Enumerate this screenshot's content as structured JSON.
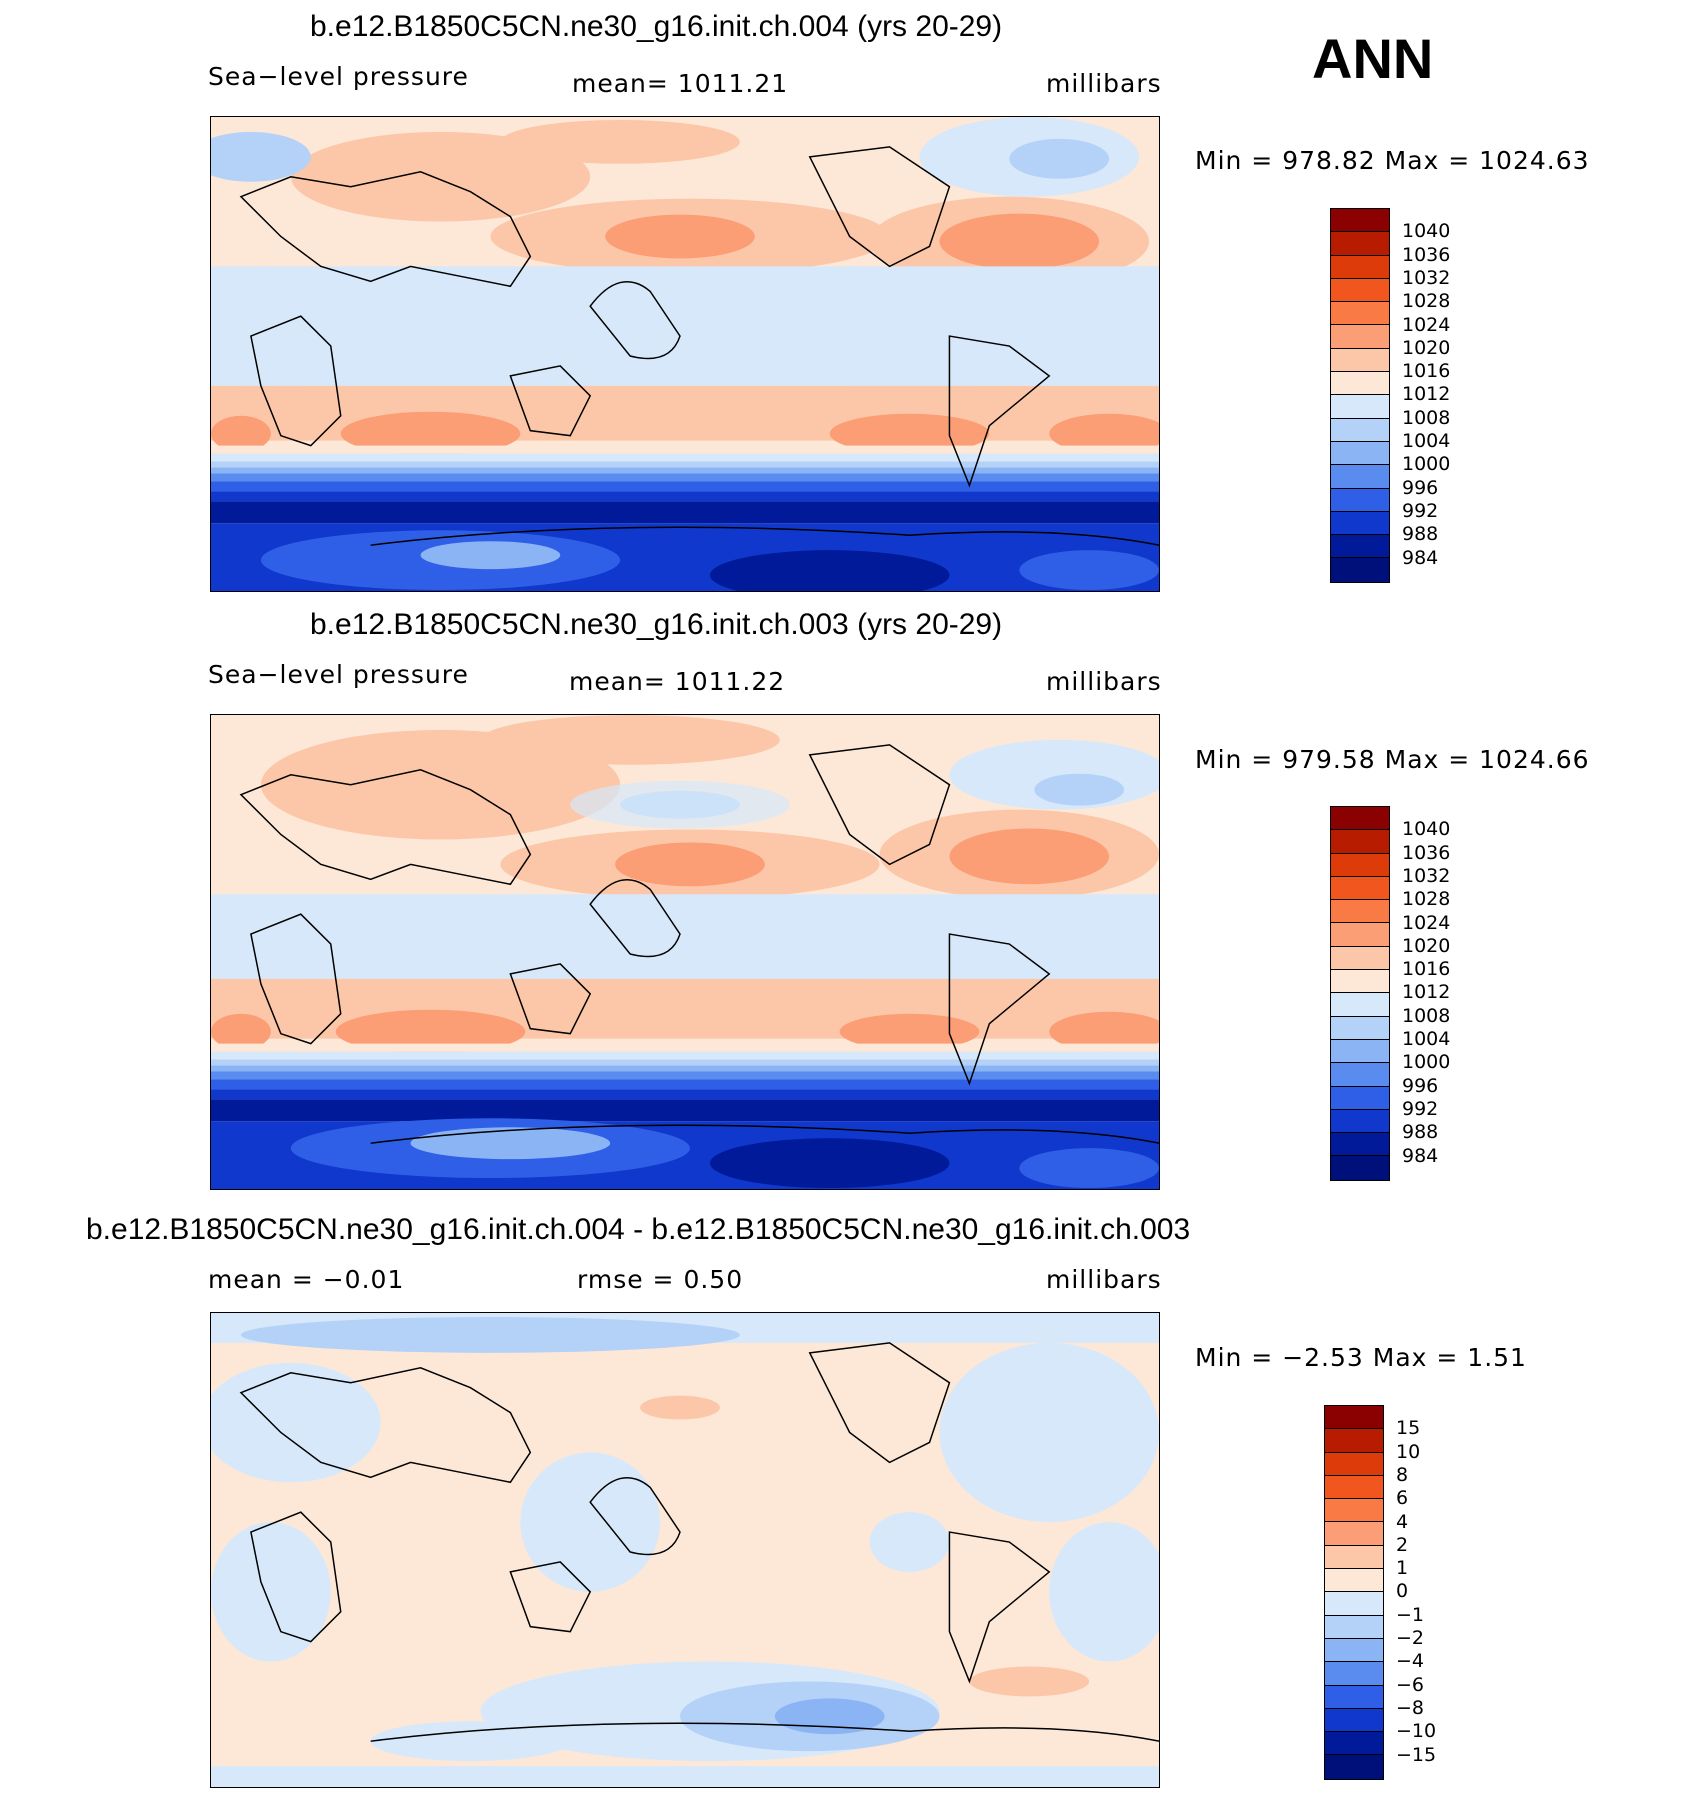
{
  "season": "ANN",
  "panels": [
    {
      "title": "b.e12.B1850C5CN.ne30_g16.init.ch.004 (yrs 20-29)",
      "left_label": "Sea−level pressure",
      "center_label": "mean=  1011.21",
      "right_label": "millibars",
      "minmax": "Min  =  978.82  Max  =  1024.63",
      "levels": [
        "1040",
        "1036",
        "1032",
        "1028",
        "1024",
        "1020",
        "1016",
        "1012",
        "1008",
        "1004",
        "1000",
        "996",
        "992",
        "988",
        "984"
      ],
      "colors": [
        "#8b0000",
        "#b81c00",
        "#dd3c0a",
        "#f0561e",
        "#fa7a46",
        "#fb9e76",
        "#fcc7a8",
        "#fde8d8",
        "#d6e8fa",
        "#b4d2f8",
        "#8bb4f4",
        "#5a8cf0",
        "#2f5fe6",
        "#1038cc",
        "#001a99",
        "#00107a"
      ]
    },
    {
      "title": "b.e12.B1850C5CN.ne30_g16.init.ch.003 (yrs 20-29)",
      "left_label": "Sea−level pressure",
      "center_label": "mean=  1011.22",
      "right_label": "millibars",
      "minmax": "Min  =  979.58  Max  =  1024.66",
      "levels": [
        "1040",
        "1036",
        "1032",
        "1028",
        "1024",
        "1020",
        "1016",
        "1012",
        "1008",
        "1004",
        "1000",
        "996",
        "992",
        "988",
        "984"
      ],
      "colors": [
        "#8b0000",
        "#b81c00",
        "#dd3c0a",
        "#f0561e",
        "#fa7a46",
        "#fb9e76",
        "#fcc7a8",
        "#fde8d8",
        "#d6e8fa",
        "#b4d2f8",
        "#8bb4f4",
        "#5a8cf0",
        "#2f5fe6",
        "#1038cc",
        "#001a99",
        "#00107a"
      ]
    },
    {
      "title": "b.e12.B1850C5CN.ne30_g16.init.ch.004 - b.e12.B1850C5CN.ne30_g16.init.ch.003",
      "left_label": "mean  =    −0.01",
      "center_label": "rmse  =     0.50",
      "right_label": "millibars",
      "minmax": "Min  =    −2.53  Max  =     1.51",
      "levels": [
        "15",
        "10",
        "8",
        "6",
        "4",
        "2",
        "1",
        "0",
        "−1",
        "−2",
        "−4",
        "−6",
        "−8",
        "−10",
        "−15"
      ],
      "colors": [
        "#8b0000",
        "#b81c00",
        "#dd3c0a",
        "#f0561e",
        "#fa7a46",
        "#fb9e76",
        "#fcc7a8",
        "#fde8d8",
        "#d6e8fa",
        "#b4d2f8",
        "#8bb4f4",
        "#5a8cf0",
        "#2f5fe6",
        "#1038cc",
        "#001a99",
        "#00107a"
      ]
    }
  ]
}
